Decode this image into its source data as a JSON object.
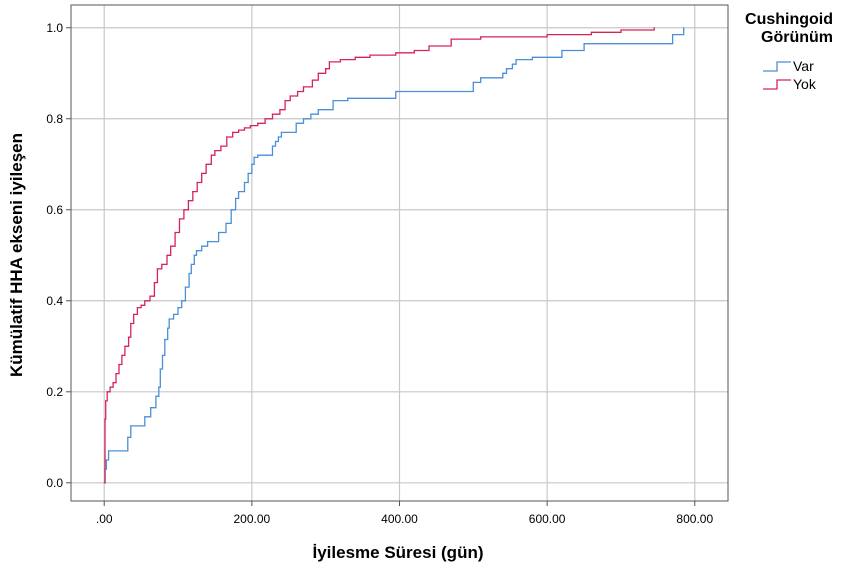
{
  "chart_data": {
    "type": "line",
    "subtype": "step",
    "xlabel": "İyilesme Süresi (gün)",
    "ylabel": "Kümülatif HHA ekseni iyileşen",
    "xlim": [
      -45,
      845
    ],
    "ylim": [
      -0.04,
      1.05
    ],
    "x_ticks": [
      0,
      200,
      400,
      600,
      800
    ],
    "x_tick_labels": [
      ".00",
      "200.00",
      "400.00",
      "600.00",
      "800.00"
    ],
    "y_ticks": [
      0.0,
      0.2,
      0.4,
      0.6,
      0.8,
      1.0
    ],
    "y_tick_labels": [
      "0.0",
      "0.2",
      "0.4",
      "0.6",
      "0.8",
      "1.0"
    ],
    "grid": true,
    "legend": {
      "title": "Cushingoid Görünüm",
      "placement": "top-right"
    },
    "series": [
      {
        "name": "Var",
        "color": "#4a8fd8",
        "x": [
          0,
          1,
          3,
          6,
          32,
          36,
          55,
          63,
          70,
          74,
          76,
          79,
          82,
          86,
          88,
          94,
          100,
          105,
          110,
          115,
          118,
          122,
          125,
          132,
          140,
          155,
          165,
          172,
          178,
          182,
          190,
          195,
          200,
          203,
          208,
          228,
          232,
          236,
          240,
          250,
          260,
          270,
          280,
          290,
          310,
          330,
          395,
          500,
          510,
          540,
          545,
          553,
          558,
          580,
          620,
          650,
          770,
          785
        ],
        "y": [
          0.0,
          0.03,
          0.05,
          0.07,
          0.1,
          0.125,
          0.145,
          0.165,
          0.19,
          0.21,
          0.25,
          0.28,
          0.315,
          0.34,
          0.36,
          0.37,
          0.385,
          0.4,
          0.43,
          0.46,
          0.48,
          0.5,
          0.51,
          0.52,
          0.53,
          0.55,
          0.57,
          0.6,
          0.625,
          0.64,
          0.66,
          0.68,
          0.7,
          0.715,
          0.72,
          0.74,
          0.75,
          0.76,
          0.77,
          0.77,
          0.79,
          0.8,
          0.81,
          0.82,
          0.84,
          0.845,
          0.86,
          0.88,
          0.89,
          0.9,
          0.91,
          0.92,
          0.93,
          0.935,
          0.95,
          0.965,
          0.985,
          1.0
        ]
      },
      {
        "name": "Yok",
        "color": "#d6245a",
        "x": [
          0,
          1,
          2,
          4,
          8,
          12,
          16,
          20,
          24,
          28,
          33,
          36,
          40,
          45,
          50,
          55,
          62,
          68,
          72,
          78,
          85,
          90,
          96,
          102,
          108,
          114,
          120,
          126,
          132,
          138,
          145,
          150,
          158,
          166,
          174,
          182,
          190,
          198,
          208,
          218,
          228,
          238,
          245,
          252,
          262,
          270,
          282,
          290,
          300,
          305,
          320,
          340,
          360,
          395,
          420,
          440,
          470,
          510,
          600,
          660,
          700,
          745
        ],
        "y": [
          0.0,
          0.14,
          0.18,
          0.2,
          0.21,
          0.22,
          0.24,
          0.26,
          0.28,
          0.3,
          0.32,
          0.35,
          0.37,
          0.385,
          0.39,
          0.4,
          0.41,
          0.44,
          0.47,
          0.48,
          0.5,
          0.52,
          0.55,
          0.58,
          0.6,
          0.62,
          0.64,
          0.66,
          0.68,
          0.7,
          0.72,
          0.73,
          0.74,
          0.76,
          0.77,
          0.775,
          0.78,
          0.785,
          0.79,
          0.8,
          0.81,
          0.82,
          0.84,
          0.85,
          0.86,
          0.87,
          0.885,
          0.9,
          0.91,
          0.925,
          0.93,
          0.935,
          0.94,
          0.945,
          0.95,
          0.96,
          0.975,
          0.98,
          0.985,
          0.99,
          0.995,
          1.0
        ]
      }
    ]
  }
}
